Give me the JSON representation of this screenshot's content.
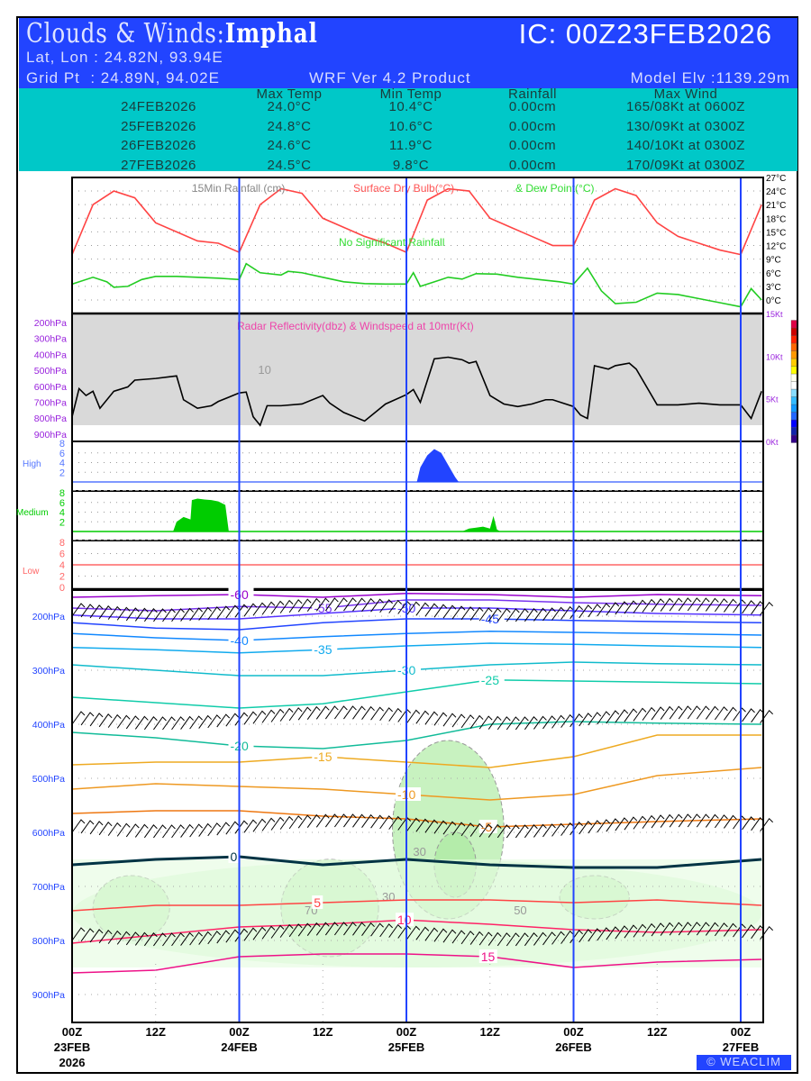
{
  "header": {
    "title_prefix": "Clouds & Winds:",
    "station": "Imphal",
    "ic": "IC: 00Z23FEB2026",
    "latlon": "Lat, Lon : 24.82N, 93.94E",
    "gridpt": "Grid Pt  : 24.89N, 94.02E",
    "product": "WRF Ver 4.2 Product",
    "elev": "Model Elv :1139.29m"
  },
  "summary": {
    "columns": [
      "Max Temp",
      "Min Temp",
      "Rainfall",
      "Max Wind"
    ],
    "rows": [
      [
        "24FEB2026",
        "24.0°C",
        "10.4°C",
        "0.00cm",
        "165/08Kt at 0600Z"
      ],
      [
        "25FEB2026",
        "24.8°C",
        "10.6°C",
        "0.00cm",
        "130/09Kt at 0300Z"
      ],
      [
        "26FEB2026",
        "24.6°C",
        "11.9°C",
        "0.00cm",
        "140/10Kt at 0300Z"
      ],
      [
        "27FEB2026",
        "24.5°C",
        "9.8°C",
        "0.00cm",
        "170/09Kt at 0300Z"
      ]
    ]
  },
  "watermark": "© WEACLIM",
  "chart_data": [
    {
      "type": "line",
      "title": "15Min Rainfall (cm)  Surface Dry Bulb(°C)  & Dew Point(°C)",
      "title_parts": [
        "15Min Rainfall (cm)",
        "Surface Dry Bulb(°C)",
        "& Dew Point(°C)"
      ],
      "annotation": "No Significant Rainfall",
      "ylim": [
        0,
        27
      ],
      "yticks": [
        "27°C",
        "24°C",
        "21°C",
        "18°C",
        "15°C",
        "12°C",
        "9°C",
        "6°C",
        "3°C",
        "0°C"
      ],
      "x_unit": "hours since 00Z23FEB2026",
      "series": [
        {
          "name": "Surface Dry Bulb",
          "color": "#ff4444",
          "x": [
            0,
            3,
            6,
            9,
            12,
            15,
            18,
            21,
            24,
            27,
            30,
            33,
            36,
            39,
            42,
            45,
            48,
            51,
            54,
            57,
            60,
            63,
            66,
            69,
            72,
            75,
            78,
            81,
            84,
            87,
            90,
            93,
            96,
            99
          ],
          "values": [
            10,
            21,
            24,
            22.5,
            17,
            15,
            13,
            12.5,
            10.5,
            21,
            24.5,
            23.5,
            18,
            16,
            14,
            12.5,
            10.5,
            22,
            24.5,
            24,
            18,
            16,
            14,
            12,
            12,
            22,
            24.5,
            23,
            17,
            14,
            12.5,
            11,
            10,
            21
          ]
        },
        {
          "name": "Dew Point",
          "color": "#22cc22",
          "x": [
            0,
            3,
            5,
            6,
            8,
            10,
            12,
            15,
            18,
            21,
            24,
            25,
            27,
            30,
            31,
            33,
            36,
            39,
            42,
            45,
            48,
            49,
            50,
            52,
            54,
            56,
            58,
            61,
            64,
            67,
            70,
            72,
            74,
            76,
            78,
            81,
            84,
            87,
            90,
            93,
            96,
            97.5,
            99
          ],
          "values": [
            3.5,
            5,
            4,
            2.8,
            3,
            4.5,
            5.2,
            5.2,
            5,
            4.8,
            4.5,
            8,
            6,
            5.5,
            6.3,
            6,
            5,
            4,
            3.6,
            3.5,
            3.5,
            6,
            3,
            4,
            5,
            4.6,
            5.8,
            5.7,
            5,
            4.5,
            4,
            3.5,
            7,
            2,
            -0.8,
            -0.5,
            1.5,
            1.2,
            0.3,
            -0.6,
            -1.5,
            2.5,
            0
          ]
        }
      ]
    },
    {
      "type": "line",
      "title": "Radar Reflectivity(dbz) & Windspeed at 10mtr(Kt)",
      "left_ticks": [
        "200hPa",
        "300hPa",
        "400hPa",
        "500hPa",
        "600hPa",
        "700hPa",
        "800hPa",
        "900hPa"
      ],
      "right_ticks": [
        "15Kt",
        "10Kt",
        "5Kt",
        "0Kt"
      ],
      "ylim": [
        0,
        15
      ],
      "series": [
        {
          "name": "Windspeed 10m",
          "color": "#000000",
          "x": [
            0,
            1,
            2,
            3,
            4,
            6,
            8,
            9,
            12,
            15,
            16,
            18,
            20,
            21,
            24,
            25,
            26,
            27,
            28,
            30,
            33,
            36,
            37,
            39,
            42,
            45,
            48,
            49,
            50,
            52,
            54,
            56,
            57,
            58,
            60,
            62,
            64,
            66,
            68,
            69,
            72,
            73,
            74,
            75,
            77,
            78,
            80,
            81,
            84,
            87,
            90,
            93,
            96,
            97.5,
            99
          ],
          "values": [
            3,
            6.3,
            5.5,
            6,
            4,
            6,
            6.5,
            7.3,
            7.5,
            7.8,
            5,
            4,
            4.3,
            4.8,
            5.8,
            5.9,
            3,
            2,
            4.3,
            4.3,
            4.5,
            5.5,
            4.6,
            3.5,
            2.5,
            4.5,
            5.6,
            6.2,
            4.7,
            9.8,
            10,
            9.7,
            9.3,
            9.5,
            5.5,
            4.5,
            4.2,
            4.5,
            5,
            5,
            4.2,
            3.2,
            2.8,
            9,
            8.6,
            9,
            9.3,
            8.6,
            4.4,
            4.4,
            4.6,
            4.4,
            4.4,
            2.8,
            6
          ]
        }
      ]
    },
    {
      "type": "area",
      "layers": [
        {
          "name": "High",
          "label": "High",
          "color": "#2244ff",
          "ticks": [
            "8",
            "6",
            "4",
            "2"
          ],
          "x": [
            49.5,
            50,
            51,
            52,
            53,
            54,
            55,
            55.5
          ],
          "values": [
            0,
            3,
            5.5,
            6.8,
            6,
            3.5,
            1,
            0
          ]
        },
        {
          "name": "Medium",
          "label": "Medium",
          "color": "#00cc00",
          "ticks": [
            "8",
            "6",
            "4",
            "2"
          ],
          "x": [
            14.5,
            15,
            16,
            17,
            17.2,
            18,
            19,
            20,
            21,
            22,
            22.5,
            56,
            57,
            58,
            59,
            60,
            60.5,
            61,
            61.5
          ],
          "values": [
            0,
            2,
            3,
            2.5,
            6.5,
            6.8,
            6.6,
            6.5,
            6.2,
            5.5,
            0,
            0,
            0.6,
            0.8,
            1,
            0.6,
            3.2,
            0.4,
            0
          ]
        },
        {
          "name": "Low",
          "label": "Low",
          "color": "#ff4444",
          "ticks": [
            "8",
            "6",
            "4",
            "2",
            "0"
          ],
          "x": [],
          "values": []
        }
      ]
    },
    {
      "type": "contour",
      "title": "Temperature isotherms (°C) and winds vs pressure",
      "yticks": [
        "200hPa",
        "300hPa",
        "400hPa",
        "500hPa",
        "600hPa",
        "700hPa",
        "800hPa",
        "900hPa"
      ],
      "xticks": [
        "00Z",
        "12Z",
        "00Z",
        "12Z",
        "00Z",
        "12Z",
        "00Z",
        "12Z",
        "00Z"
      ],
      "date_labels": [
        "23FEB",
        "24FEB",
        "25FEB",
        "26FEB",
        "27FEB"
      ],
      "year_label": "2026",
      "x_hours": [
        0,
        12,
        24,
        36,
        48,
        60,
        72,
        84,
        99
      ],
      "isotherms": [
        {
          "value": "-60",
          "color": "#9900cc",
          "p": [
            165,
            162,
            160,
            165,
            158,
            160,
            165,
            160,
            162
          ]
        },
        {
          "value": "-55",
          "color": "#7733ee",
          "p": [
            185,
            190,
            182,
            185,
            170,
            170,
            175,
            178,
            180
          ]
        },
        {
          "value": "-50",
          "color": "#5533ff",
          "p": [
            198,
            205,
            205,
            195,
            185,
            185,
            190,
            195,
            198
          ]
        },
        {
          "value": "-45",
          "color": "#2244ff",
          "p": [
            212,
            222,
            225,
            212,
            205,
            205,
            208,
            210,
            212
          ]
        },
        {
          "value": "-40",
          "color": "#1188ff",
          "p": [
            232,
            240,
            245,
            238,
            232,
            228,
            230,
            232,
            235
          ]
        },
        {
          "value": "-35",
          "color": "#11aaee",
          "p": [
            258,
            262,
            268,
            262,
            255,
            250,
            252,
            255,
            258
          ]
        },
        {
          "value": "-30",
          "color": "#11bbcc",
          "p": [
            290,
            300,
            310,
            310,
            300,
            290,
            285,
            288,
            290
          ]
        },
        {
          "value": "-25",
          "color": "#11ccaa",
          "p": [
            350,
            360,
            370,
            362,
            340,
            318,
            320,
            322,
            325
          ]
        },
        {
          "value": "-20",
          "color": "#11bb99",
          "p": [
            415,
            425,
            440,
            445,
            430,
            400,
            395,
            398,
            400
          ]
        },
        {
          "value": "-15",
          "color": "#eeaa22",
          "p": [
            475,
            470,
            470,
            460,
            470,
            480,
            460,
            420,
            420
          ]
        },
        {
          "value": "-10",
          "color": "#ee9922",
          "p": [
            520,
            510,
            515,
            520,
            530,
            540,
            530,
            495,
            480
          ]
        },
        {
          "value": "-5",
          "color": "#ee7711",
          "p": [
            565,
            560,
            560,
            570,
            575,
            590,
            585,
            580,
            575
          ]
        },
        {
          "value": "0",
          "color": "#003344",
          "p": [
            660,
            650,
            645,
            660,
            650,
            660,
            665,
            665,
            650
          ]
        },
        {
          "value": "5",
          "color": "#ff4444",
          "p": [
            745,
            735,
            735,
            730,
            725,
            725,
            730,
            725,
            735
          ]
        },
        {
          "value": "10",
          "color": "#ff2266",
          "p": [
            805,
            790,
            775,
            770,
            762,
            770,
            780,
            785,
            780
          ]
        },
        {
          "value": "15",
          "color": "#ee1188",
          "p": [
            860,
            855,
            830,
            825,
            825,
            830,
            850,
            840,
            835
          ]
        }
      ],
      "rh_contour_labels": [
        "10",
        "30",
        "50",
        "70"
      ],
      "wind_levels_hPa": [
        200,
        400,
        600,
        800
      ]
    }
  ]
}
